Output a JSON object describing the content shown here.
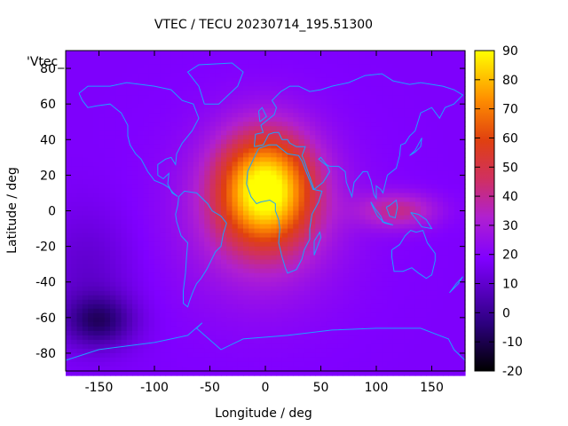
{
  "chart_data": {
    "type": "heatmap",
    "title": "VTEC / TECU 20230714_195.51300",
    "xlabel": "Longitude / deg",
    "ylabel": "Latitude / deg",
    "series_label": "'Vtec_",
    "xlim": [
      -180,
      180
    ],
    "ylim": [
      -90,
      90
    ],
    "x_ticks": [
      -150,
      -100,
      -50,
      0,
      50,
      100,
      150
    ],
    "y_ticks": [
      -80,
      -60,
      -40,
      -20,
      0,
      20,
      40,
      60,
      80
    ],
    "colorbar": {
      "range": [
        -20,
        90
      ],
      "ticks": [
        -20,
        -10,
        0,
        10,
        20,
        30,
        40,
        50,
        60,
        70,
        80,
        90
      ],
      "palette": "black-blue-purple-red-orange-yellow"
    },
    "grid": false,
    "features": {
      "background_level_tecu": 18,
      "peak": {
        "lon": 0,
        "lat": 12,
        "tecu": 85
      },
      "minimum": {
        "lon": -150,
        "lat": -62,
        "tecu": -5
      },
      "secondary_peak": {
        "lon": 120,
        "lat": 0,
        "tecu": 45
      }
    }
  }
}
